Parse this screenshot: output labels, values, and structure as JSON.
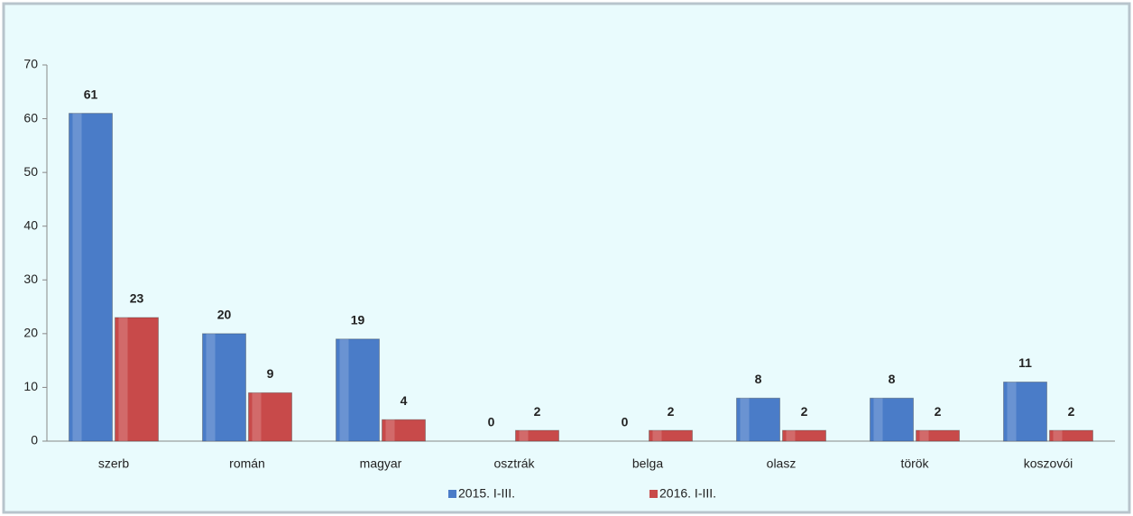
{
  "chart_data": {
    "type": "bar",
    "categories": [
      "szerb",
      "román",
      "magyar",
      "osztrák",
      "belga",
      "olasz",
      "török",
      "koszovói"
    ],
    "series": [
      {
        "name": "2015. I-III.",
        "color": "#4a7cc8",
        "values": [
          61,
          20,
          19,
          0,
          0,
          8,
          8,
          11
        ]
      },
      {
        "name": "2016. I-III.",
        "color": "#c84a4a",
        "values": [
          23,
          9,
          4,
          2,
          2,
          2,
          2,
          2
        ]
      }
    ],
    "ylim": [
      0,
      70
    ],
    "yticks": [
      0,
      10,
      20,
      30,
      40,
      50,
      60,
      70
    ],
    "grid": false,
    "legend": "bottom"
  }
}
